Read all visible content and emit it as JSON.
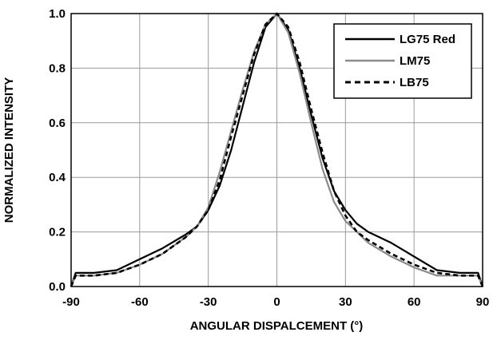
{
  "chart_data": {
    "type": "line",
    "title": "",
    "xlabel": "ANGULAR DISPALCEMENT (°)",
    "ylabel": "NORMALIZED INTENSITY",
    "xlim": [
      -90,
      90
    ],
    "ylim": [
      0,
      1
    ],
    "xticks": [
      -90,
      -60,
      -30,
      0,
      30,
      60,
      90
    ],
    "yticks": [
      0,
      0.2,
      0.4,
      0.6,
      0.8,
      1
    ],
    "xtick_labels": [
      "-90",
      "-60",
      "-30",
      "0",
      "30",
      "60",
      "90"
    ],
    "ytick_labels": [
      "0.0",
      "0.2",
      "0.4",
      "0.6",
      "0.8",
      "1.0"
    ],
    "grid": true,
    "legend_position": "top-right",
    "series": [
      {
        "name": "LG75 Red",
        "color": "#000000",
        "dash": "solid",
        "x": [
          -90,
          -88,
          -80,
          -70,
          -60,
          -50,
          -40,
          -35,
          -30,
          -25,
          -20,
          -15,
          -10,
          -5,
          0,
          5,
          10,
          15,
          20,
          25,
          30,
          35,
          40,
          50,
          60,
          70,
          80,
          88,
          90
        ],
        "y": [
          0.0,
          0.05,
          0.05,
          0.06,
          0.1,
          0.14,
          0.19,
          0.22,
          0.28,
          0.37,
          0.5,
          0.66,
          0.82,
          0.95,
          1.0,
          0.94,
          0.8,
          0.63,
          0.47,
          0.35,
          0.28,
          0.23,
          0.2,
          0.16,
          0.11,
          0.06,
          0.05,
          0.05,
          0.0
        ]
      },
      {
        "name": "LM75",
        "color": "#8a8a8a",
        "dash": "solid",
        "x": [
          -90,
          -88,
          -80,
          -70,
          -60,
          -50,
          -40,
          -35,
          -30,
          -25,
          -20,
          -15,
          -10,
          -5,
          0,
          5,
          10,
          15,
          20,
          25,
          30,
          35,
          40,
          50,
          60,
          70,
          80,
          88,
          90
        ],
        "y": [
          0.0,
          0.04,
          0.04,
          0.05,
          0.08,
          0.12,
          0.18,
          0.22,
          0.29,
          0.42,
          0.57,
          0.72,
          0.86,
          0.96,
          1.0,
          0.93,
          0.78,
          0.6,
          0.43,
          0.31,
          0.24,
          0.2,
          0.16,
          0.11,
          0.07,
          0.04,
          0.04,
          0.04,
          0.0
        ]
      },
      {
        "name": "LB75",
        "color": "#000000",
        "dash": "dashed",
        "x": [
          -90,
          -88,
          -80,
          -70,
          -60,
          -50,
          -40,
          -35,
          -30,
          -25,
          -20,
          -15,
          -10,
          -5,
          0,
          5,
          10,
          15,
          20,
          25,
          30,
          35,
          40,
          50,
          60,
          70,
          80,
          88,
          90
        ],
        "y": [
          0.0,
          0.04,
          0.04,
          0.05,
          0.08,
          0.12,
          0.18,
          0.22,
          0.28,
          0.39,
          0.55,
          0.7,
          0.85,
          0.96,
          1.0,
          0.95,
          0.82,
          0.65,
          0.49,
          0.35,
          0.26,
          0.2,
          0.17,
          0.12,
          0.08,
          0.05,
          0.04,
          0.04,
          0.0
        ]
      }
    ]
  }
}
